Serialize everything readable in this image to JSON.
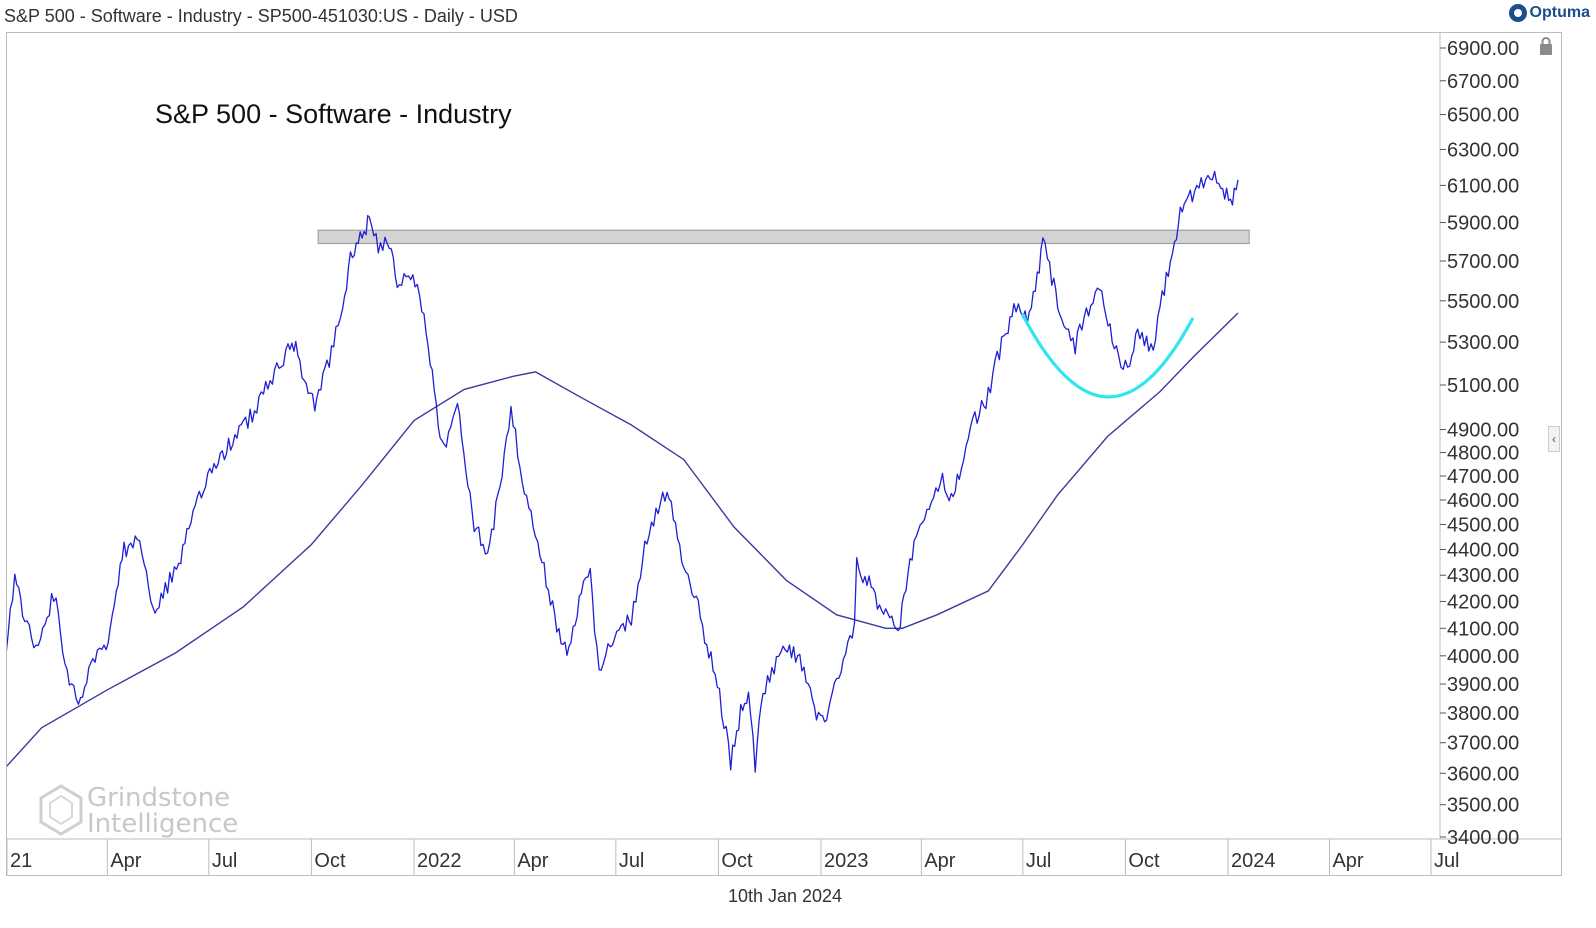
{
  "header": {
    "title": "S&P 500 - Software - Industry - SP500-451030:US - Daily - USD",
    "brand": "Optuma"
  },
  "footer": {
    "date": "10th Jan 2024"
  },
  "watermark": {
    "line1": "Grindstone",
    "line2": "Intelligence"
  },
  "colors": {
    "price": "#1f1fd6",
    "moving_average": "#3a3aa0",
    "arc": "#2ee6ee",
    "resistance_band": "#d3d3d3",
    "axis_text": "#333333"
  },
  "chart_data": {
    "type": "line",
    "title": "S&P 500 - Software - Industry",
    "xlabel": "",
    "ylabel": "",
    "scale": "log",
    "ylim": [
      3400,
      7000
    ],
    "y_ticks": [
      "6900.00",
      "6700.00",
      "6500.00",
      "6300.00",
      "6100.00",
      "5900.00",
      "5700.00",
      "5500.00",
      "5300.00",
      "5100.00",
      "4900.00",
      "4800.00",
      "4700.00",
      "4600.00",
      "4500.00",
      "4400.00",
      "4300.00",
      "4200.00",
      "4100.00",
      "4000.00",
      "3900.00",
      "3800.00",
      "3700.00",
      "3600.00",
      "3500.00",
      "3400.00"
    ],
    "x_ticks": [
      "21",
      "Apr",
      "Jul",
      "Oct",
      "2022",
      "Apr",
      "Jul",
      "Oct",
      "2023",
      "Apr",
      "Jul",
      "Oct",
      "2024",
      "Apr",
      "Jul"
    ],
    "x_tick_dates": [
      "2021-01-01",
      "2021-04-01",
      "2021-07-01",
      "2021-10-01",
      "2022-01-01",
      "2022-04-01",
      "2022-07-01",
      "2022-10-01",
      "2023-01-01",
      "2023-04-01",
      "2023-07-01",
      "2023-10-01",
      "2024-01-01",
      "2024-04-01",
      "2024-07-01"
    ],
    "xlim": [
      "2020-12-30",
      "2024-08-15"
    ],
    "series": [
      {
        "style": "price",
        "points": [
          [
            "2020-12-31",
            4000
          ],
          [
            "2021-01-08",
            4300
          ],
          [
            "2021-01-15",
            4150
          ],
          [
            "2021-01-29",
            4020
          ],
          [
            "2021-02-12",
            4230
          ],
          [
            "2021-02-26",
            3900
          ],
          [
            "2021-03-08",
            3850
          ],
          [
            "2021-03-19",
            3980
          ],
          [
            "2021-03-31",
            4020
          ],
          [
            "2021-04-09",
            4250
          ],
          [
            "2021-04-16",
            4400
          ],
          [
            "2021-04-30",
            4430
          ],
          [
            "2021-05-12",
            4160
          ],
          [
            "2021-05-21",
            4230
          ],
          [
            "2021-06-04",
            4350
          ],
          [
            "2021-06-15",
            4520
          ],
          [
            "2021-06-30",
            4680
          ],
          [
            "2021-07-15",
            4800
          ],
          [
            "2021-07-30",
            4900
          ],
          [
            "2021-08-13",
            5000
          ],
          [
            "2021-08-31",
            5180
          ],
          [
            "2021-09-10",
            5250
          ],
          [
            "2021-09-17",
            5270
          ],
          [
            "2021-09-30",
            5050
          ],
          [
            "2021-10-04",
            5000
          ],
          [
            "2021-10-15",
            5180
          ],
          [
            "2021-10-29",
            5450
          ],
          [
            "2021-11-05",
            5740
          ],
          [
            "2021-11-12",
            5790
          ],
          [
            "2021-11-19",
            5880
          ],
          [
            "2021-11-22",
            5920
          ],
          [
            "2021-11-30",
            5780
          ],
          [
            "2021-12-08",
            5820
          ],
          [
            "2021-12-17",
            5580
          ],
          [
            "2021-12-31",
            5650
          ],
          [
            "2022-01-10",
            5450
          ],
          [
            "2022-01-21",
            5000
          ],
          [
            "2022-01-28",
            4800
          ],
          [
            "2022-02-09",
            5000
          ],
          [
            "2022-02-24",
            4500
          ],
          [
            "2022-03-08",
            4380
          ],
          [
            "2022-03-21",
            4700
          ],
          [
            "2022-03-29",
            4980
          ],
          [
            "2022-04-08",
            4700
          ],
          [
            "2022-04-22",
            4430
          ],
          [
            "2022-05-11",
            4080
          ],
          [
            "2022-05-20",
            4020
          ],
          [
            "2022-05-31",
            4250
          ],
          [
            "2022-06-08",
            4300
          ],
          [
            "2022-06-16",
            3940
          ],
          [
            "2022-06-30",
            4080
          ],
          [
            "2022-07-15",
            4140
          ],
          [
            "2022-07-29",
            4450
          ],
          [
            "2022-08-16",
            4640
          ],
          [
            "2022-08-31",
            4330
          ],
          [
            "2022-09-13",
            4170
          ],
          [
            "2022-09-30",
            3900
          ],
          [
            "2022-10-12",
            3640
          ],
          [
            "2022-10-21",
            3800
          ],
          [
            "2022-10-28",
            3880
          ],
          [
            "2022-11-03",
            3630
          ],
          [
            "2022-11-10",
            3880
          ],
          [
            "2022-11-30",
            4050
          ],
          [
            "2022-12-13",
            3980
          ],
          [
            "2022-12-28",
            3800
          ],
          [
            "2023-01-06",
            3760
          ],
          [
            "2023-01-13",
            3900
          ],
          [
            "2023-01-31",
            4100
          ],
          [
            "2023-02-02",
            4340
          ],
          [
            "2023-02-15",
            4250
          ],
          [
            "2023-02-28",
            4140
          ],
          [
            "2023-03-13",
            4120
          ],
          [
            "2023-03-20",
            4300
          ],
          [
            "2023-03-31",
            4520
          ],
          [
            "2023-04-10",
            4580
          ],
          [
            "2023-04-20",
            4680
          ],
          [
            "2023-04-26",
            4560
          ],
          [
            "2023-05-05",
            4720
          ],
          [
            "2023-05-19",
            4950
          ],
          [
            "2023-05-31",
            5050
          ],
          [
            "2023-06-12",
            5300
          ],
          [
            "2023-06-16",
            5350
          ],
          [
            "2023-06-23",
            5450
          ],
          [
            "2023-07-05",
            5430
          ],
          [
            "2023-07-14",
            5600
          ],
          [
            "2023-07-19",
            5820
          ],
          [
            "2023-07-27",
            5620
          ],
          [
            "2023-08-03",
            5450
          ],
          [
            "2023-08-17",
            5280
          ],
          [
            "2023-08-31",
            5500
          ],
          [
            "2023-09-08",
            5560
          ],
          [
            "2023-09-21",
            5290
          ],
          [
            "2023-10-03",
            5150
          ],
          [
            "2023-10-12",
            5350
          ],
          [
            "2023-10-26",
            5260
          ],
          [
            "2023-11-03",
            5520
          ],
          [
            "2023-11-14",
            5800
          ],
          [
            "2023-11-21",
            6000
          ],
          [
            "2023-11-30",
            6050
          ],
          [
            "2023-12-08",
            6100
          ],
          [
            "2023-12-14",
            6170
          ],
          [
            "2023-12-22",
            6150
          ],
          [
            "2023-12-29",
            6050
          ],
          [
            "2024-01-05",
            6030
          ],
          [
            "2024-01-10",
            6130
          ]
        ]
      },
      {
        "style": "moving_average",
        "points": [
          [
            "2020-12-31",
            3620
          ],
          [
            "2021-02-01",
            3750
          ],
          [
            "2021-04-01",
            3880
          ],
          [
            "2021-06-01",
            4010
          ],
          [
            "2021-08-01",
            4180
          ],
          [
            "2021-10-01",
            4420
          ],
          [
            "2021-11-15",
            4660
          ],
          [
            "2022-01-01",
            4940
          ],
          [
            "2022-02-15",
            5080
          ],
          [
            "2022-03-31",
            5140
          ],
          [
            "2022-04-20",
            5160
          ],
          [
            "2022-06-01",
            5040
          ],
          [
            "2022-07-15",
            4920
          ],
          [
            "2022-08-31",
            4770
          ],
          [
            "2022-10-15",
            4490
          ],
          [
            "2022-12-01",
            4280
          ],
          [
            "2023-01-15",
            4150
          ],
          [
            "2023-02-28",
            4100
          ],
          [
            "2023-03-15",
            4100
          ],
          [
            "2023-04-15",
            4150
          ],
          [
            "2023-05-31",
            4240
          ],
          [
            "2023-07-01",
            4420
          ],
          [
            "2023-08-01",
            4620
          ],
          [
            "2023-09-15",
            4870
          ],
          [
            "2023-11-01",
            5070
          ],
          [
            "2023-12-01",
            5230
          ],
          [
            "2024-01-10",
            5440
          ]
        ]
      }
    ],
    "annotations": [
      {
        "type": "band",
        "x_start": "2021-10-01",
        "x_end": "2024-01-20",
        "y_low": 5790,
        "y_high": 5860
      },
      {
        "type": "arc",
        "x_start": "2023-07-01",
        "x_end": "2023-11-30",
        "y_top": 5430,
        "y_bottom": 5050
      }
    ],
    "grid": false,
    "legend": "none"
  }
}
